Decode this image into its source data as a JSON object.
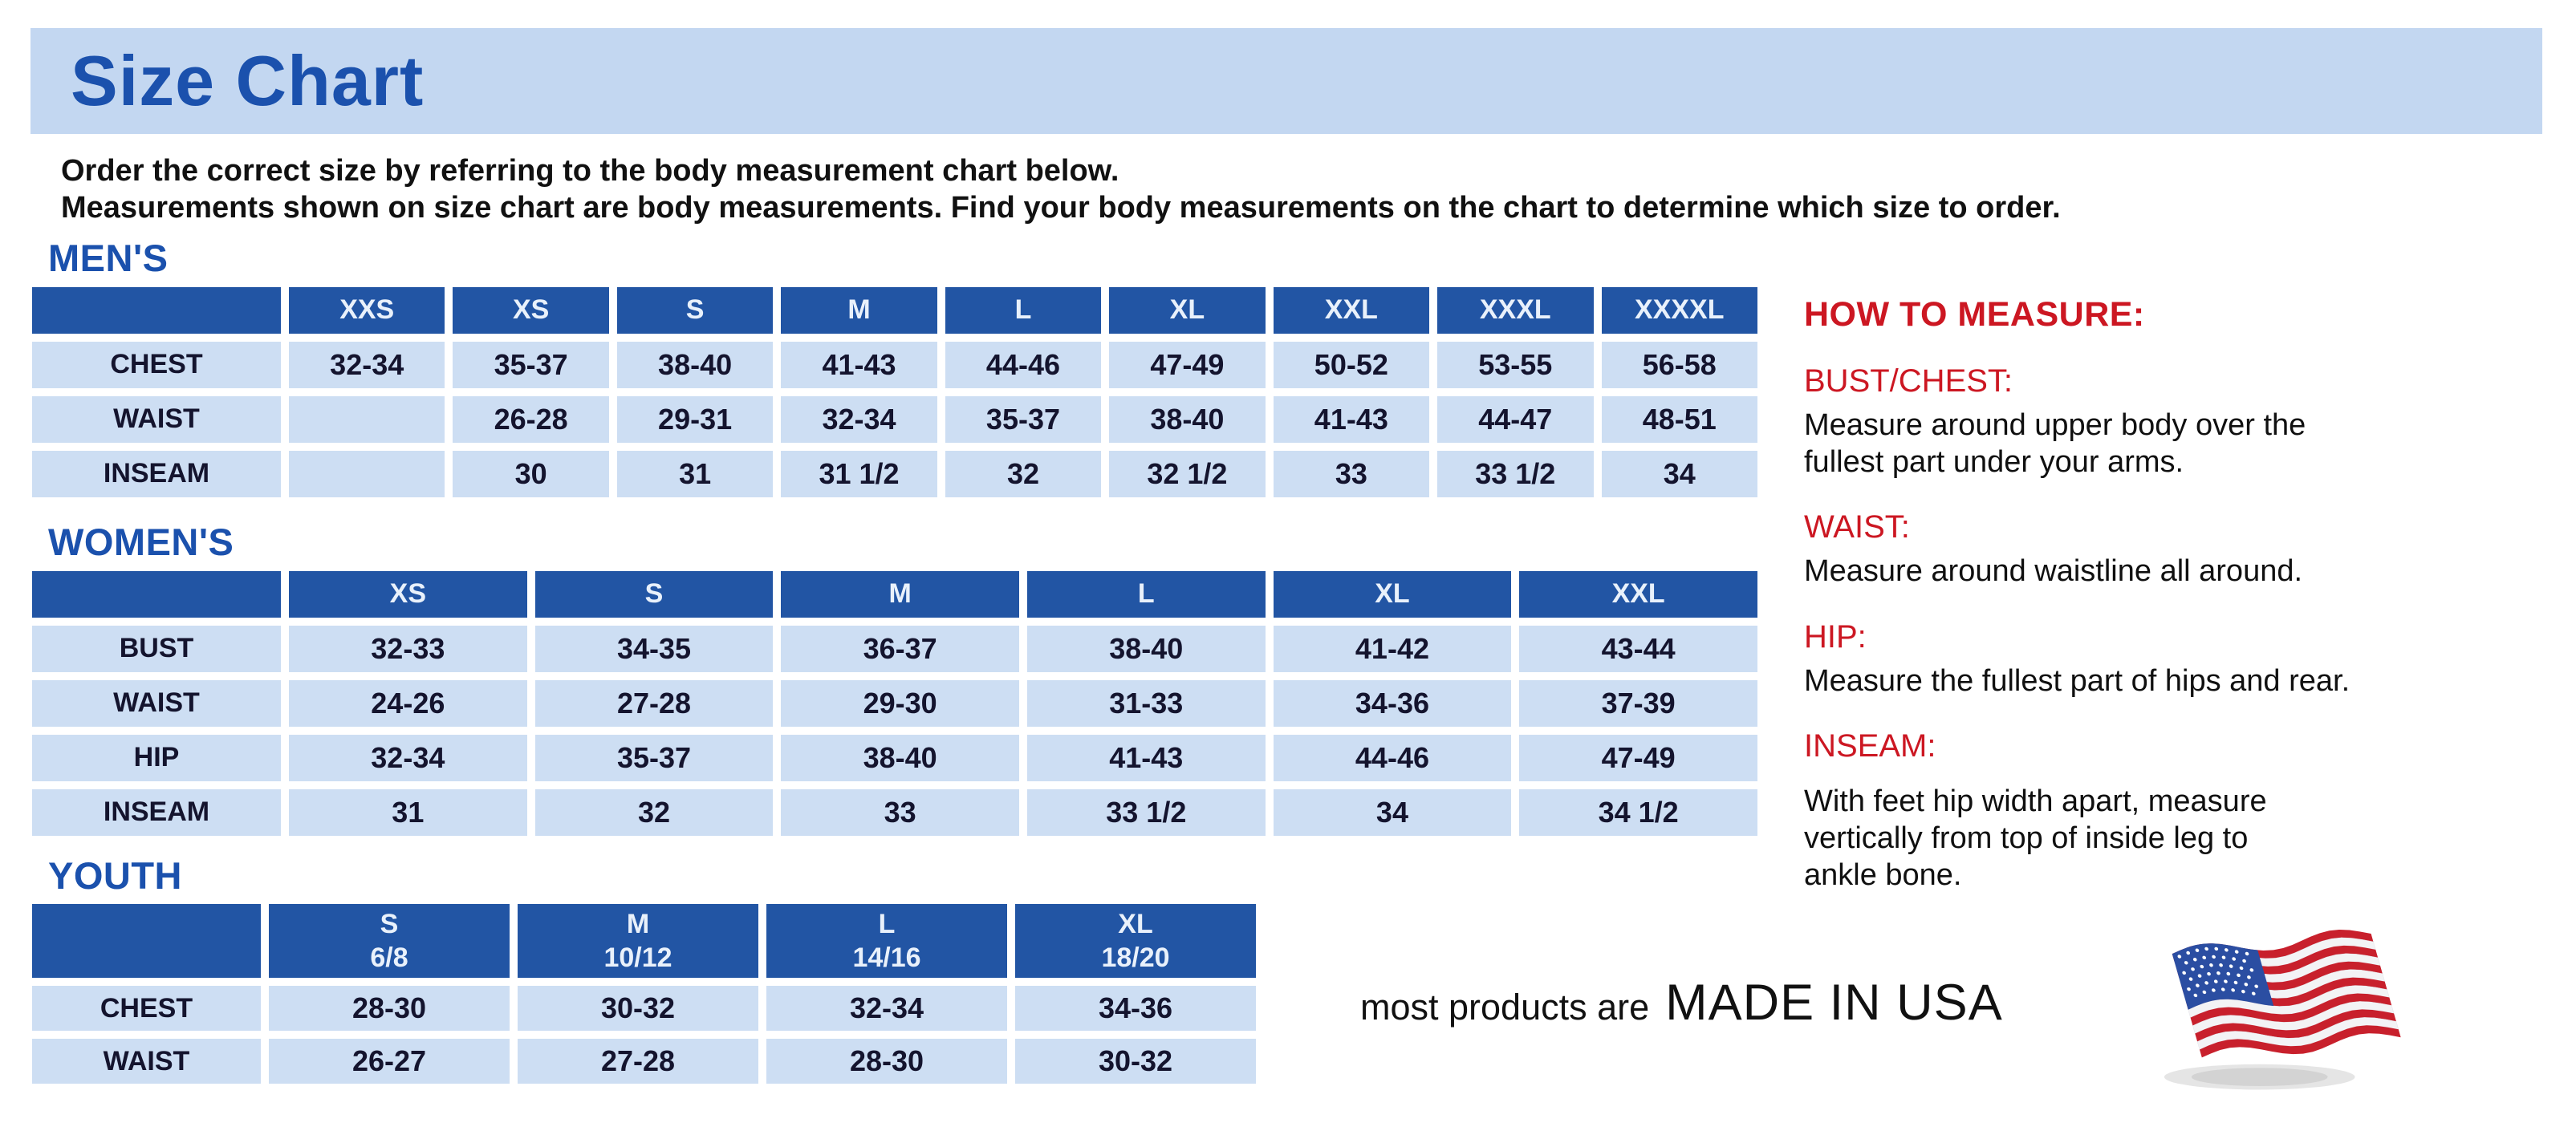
{
  "title": "Size Chart",
  "intro": {
    "line1": "Order the correct size by referring to the body measurement chart below.",
    "line2": "Measurements shown on size chart are body measurements.  Find your body measurements on the chart to determine which size to order."
  },
  "tables": {
    "mens": {
      "heading": "MEN'S",
      "columns": [
        "XXS",
        "XS",
        "S",
        "M",
        "L",
        "XL",
        "XXL",
        "XXXL",
        "XXXXL"
      ],
      "rows": [
        {
          "label": "CHEST",
          "values": [
            "32-34",
            "35-37",
            "38-40",
            "41-43",
            "44-46",
            "47-49",
            "50-52",
            "53-55",
            "56-58"
          ]
        },
        {
          "label": "WAIST",
          "values": [
            "",
            "26-28",
            "29-31",
            "32-34",
            "35-37",
            "38-40",
            "41-43",
            "44-47",
            "48-51"
          ]
        },
        {
          "label": "INSEAM",
          "values": [
            "",
            "30",
            "31",
            "31 1/2",
            "32",
            "32 1/2",
            "33",
            "33 1/2",
            "34"
          ]
        }
      ]
    },
    "womens": {
      "heading": "WOMEN'S",
      "columns": [
        "XS",
        "S",
        "M",
        "L",
        "XL",
        "XXL"
      ],
      "rows": [
        {
          "label": "BUST",
          "values": [
            "32-33",
            "34-35",
            "36-37",
            "38-40",
            "41-42",
            "43-44"
          ]
        },
        {
          "label": "WAIST",
          "values": [
            "24-26",
            "27-28",
            "29-30",
            "31-33",
            "34-36",
            "37-39"
          ]
        },
        {
          "label": "HIP",
          "values": [
            "32-34",
            "35-37",
            "38-40",
            "41-43",
            "44-46",
            "47-49"
          ]
        },
        {
          "label": "INSEAM",
          "values": [
            "31",
            "32",
            "33",
            "33 1/2",
            "34",
            "34 1/2"
          ]
        }
      ]
    },
    "youth": {
      "heading": "YOUTH",
      "columns": [
        {
          "label": "S",
          "sublabel": "6/8"
        },
        {
          "label": "M",
          "sublabel": "10/12"
        },
        {
          "label": "L",
          "sublabel": "14/16"
        },
        {
          "label": "XL",
          "sublabel": "18/20"
        }
      ],
      "rows": [
        {
          "label": "CHEST",
          "values": [
            "28-30",
            "30-32",
            "32-34",
            "34-36"
          ]
        },
        {
          "label": "WAIST",
          "values": [
            "26-27",
            "27-28",
            "28-30",
            "30-32"
          ]
        }
      ]
    }
  },
  "measure": {
    "heading": "HOW TO MEASURE:",
    "items": [
      {
        "label": "BUST/CHEST:",
        "lines": [
          "Measure around upper body over the",
          "fullest part under your arms."
        ]
      },
      {
        "label": "WAIST:",
        "lines": [
          "Measure around waistline all around."
        ]
      },
      {
        "label": "HIP:",
        "lines": [
          "Measure the fullest part of hips and rear."
        ]
      },
      {
        "label": "INSEAM:",
        "lines": [
          "With feet hip width apart, measure",
          "vertically from top of inside leg to",
          "ankle bone."
        ]
      }
    ]
  },
  "footer": {
    "prefix": "most products are",
    "emphasis": "MADE IN USA",
    "flag_icon": "us-flag"
  },
  "colors": {
    "banner_blue": "#c3d7f1",
    "heading_blue": "#1b51ad",
    "table_header_blue": "#2255a4",
    "cell_blue": "#cddef3",
    "heading_red": "#cc1722",
    "text_dark": "#14142e",
    "flag_red": "#c8202c",
    "flag_blue": "#2b4ea2"
  }
}
